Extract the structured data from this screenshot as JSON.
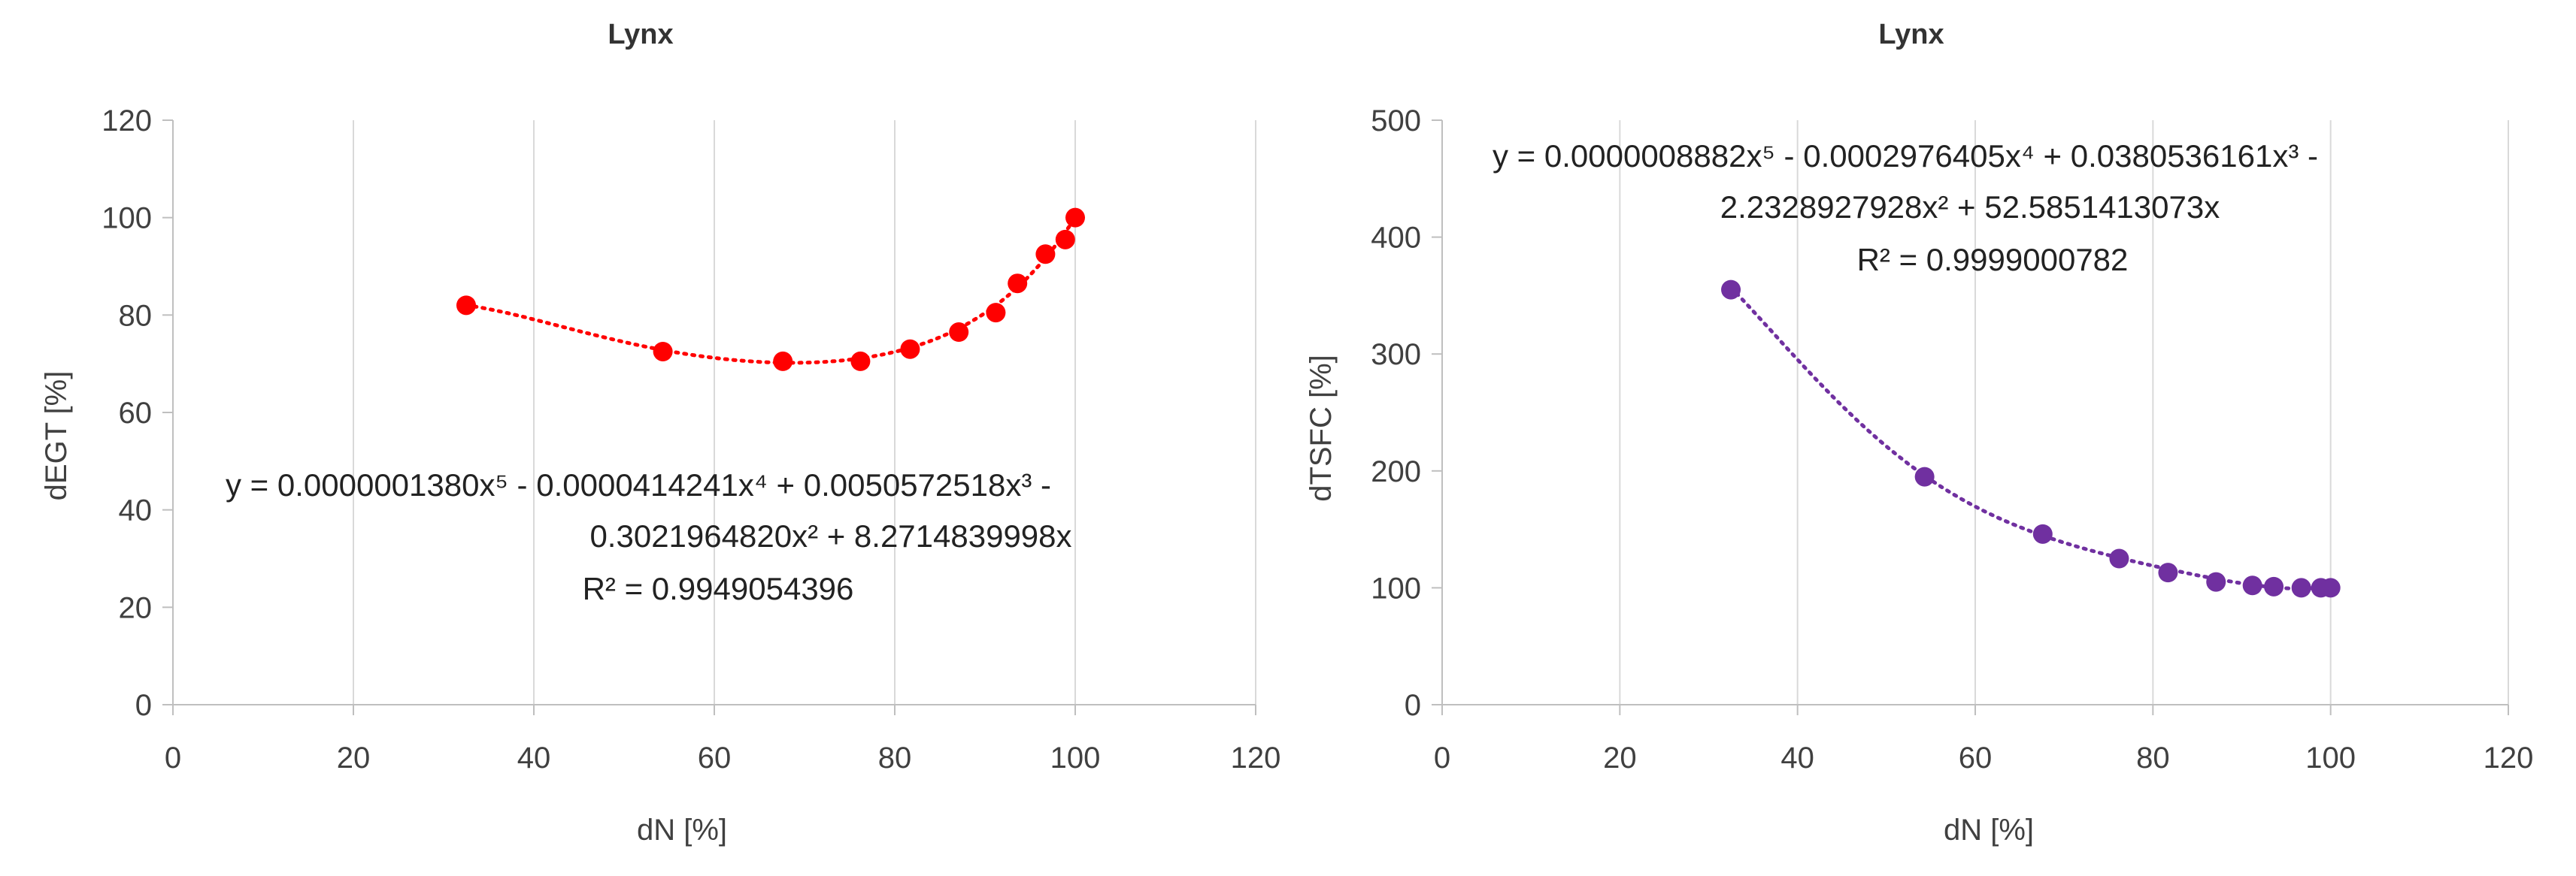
{
  "chart_data": [
    {
      "type": "scatter",
      "title": "Lynx",
      "xlabel": "dN [%]",
      "ylabel": "dEGT [%]",
      "xlim": [
        0,
        120
      ],
      "ylim": [
        0,
        120
      ],
      "xticks": [
        0,
        20,
        40,
        60,
        80,
        100,
        120
      ],
      "yticks": [
        0,
        20,
        40,
        60,
        80,
        100,
        120
      ],
      "grid": "vertical",
      "color": "#ff0000",
      "series": [
        {
          "x": [
            32.5,
            54.3,
            67.6,
            76.2,
            81.7,
            87.1,
            91.2,
            93.6,
            96.7,
            98.9,
            100
          ],
          "y": [
            82,
            72.5,
            70.5,
            70.5,
            73,
            76.5,
            80.5,
            86.5,
            92.5,
            95.5,
            100
          ]
        }
      ],
      "trendline": {
        "type": "polynomial",
        "order": 5,
        "style": "dotted",
        "coef": [
          1.38e-07,
          -4.14241e-05,
          0.0050572518,
          -0.302196482,
          8.2714839998,
          0
        ]
      },
      "equation_lines": [
        "y = 0.0000001380x⁵  - 0.0000414241x⁴  + 0.0050572518x³  -",
        "0.3021964820x²  + 8.2714839998x",
        "R² = 0.9949054396"
      ]
    },
    {
      "type": "scatter",
      "title": "Lynx",
      "xlabel": "dN [%]",
      "ylabel": "dTSFC [%]",
      "xlim": [
        0,
        120
      ],
      "ylim": [
        0,
        500
      ],
      "xticks": [
        0,
        20,
        40,
        60,
        80,
        100,
        120
      ],
      "yticks": [
        0,
        100,
        200,
        300,
        400,
        500
      ],
      "grid": "vertical",
      "color": "#7030a0",
      "series": [
        {
          "x": [
            32.5,
            54.3,
            67.6,
            76.2,
            81.7,
            87.1,
            91.2,
            93.6,
            96.7,
            98.9,
            100
          ],
          "y": [
            355,
            195,
            146,
            125,
            113,
            105,
            102,
            101,
            100,
            100,
            100
          ]
        }
      ],
      "trendline": {
        "type": "polynomial",
        "order": 5,
        "style": "dotted",
        "coef": [
          8.882e-07,
          -0.0002976405,
          0.0380536161,
          -2.2328927928,
          52.5851413073,
          0
        ]
      },
      "equation_lines": [
        "y = 0.0000008882x⁵  - 0.0002976405x⁴  + 0.0380536161x³  -",
        "2.2328927928x²  + 52.5851413073x",
        "R² = 0.9999000782"
      ]
    }
  ]
}
